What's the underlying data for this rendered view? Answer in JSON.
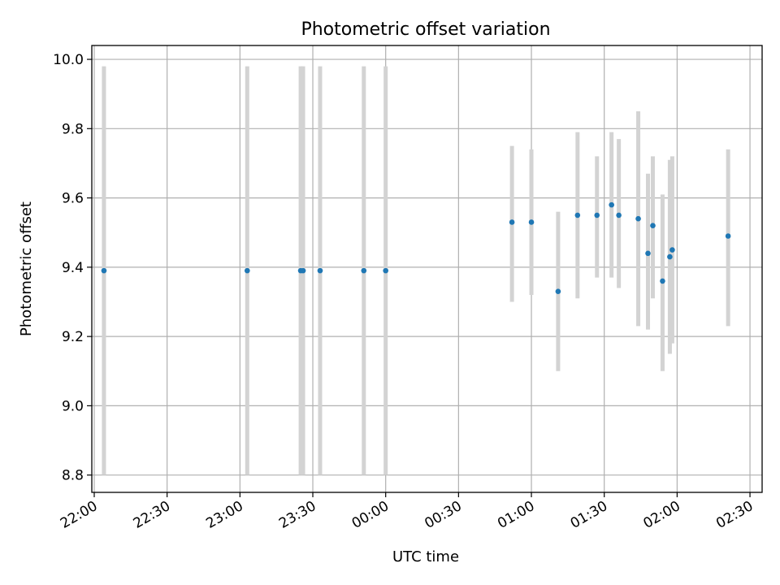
{
  "chart_data": {
    "type": "scatter",
    "title": "Photometric offset variation",
    "xlabel": "UTC time",
    "ylabel": "Photometric offset",
    "x_axis_kind": "time",
    "xlim": [
      "2000-01-01T21:59:00",
      "2000-01-02T02:35:00"
    ],
    "ylim": [
      8.75,
      10.04
    ],
    "grid": true,
    "x_ticks": [
      {
        "t": "2000-01-01T22:00:00",
        "label": "22:00"
      },
      {
        "t": "2000-01-01T22:30:00",
        "label": "22:30"
      },
      {
        "t": "2000-01-01T23:00:00",
        "label": "23:00"
      },
      {
        "t": "2000-01-01T23:30:00",
        "label": "23:30"
      },
      {
        "t": "2000-01-02T00:00:00",
        "label": "00:00"
      },
      {
        "t": "2000-01-02T00:30:00",
        "label": "00:30"
      },
      {
        "t": "2000-01-02T01:00:00",
        "label": "01:00"
      },
      {
        "t": "2000-01-02T01:30:00",
        "label": "01:30"
      },
      {
        "t": "2000-01-02T02:00:00",
        "label": "02:00"
      },
      {
        "t": "2000-01-02T02:30:00",
        "label": "02:30"
      }
    ],
    "y_ticks": [
      {
        "v": 8.8,
        "label": "8.8"
      },
      {
        "v": 9.0,
        "label": "9.0"
      },
      {
        "v": 9.2,
        "label": "9.2"
      },
      {
        "v": 9.4,
        "label": "9.4"
      },
      {
        "v": 9.6,
        "label": "9.6"
      },
      {
        "v": 9.8,
        "label": "9.8"
      },
      {
        "v": 10.0,
        "label": "10.0"
      }
    ],
    "marker_color": "#1f77b4",
    "errorbar_color": "#d3d3d3",
    "points": [
      {
        "t": "2000-01-01T22:04:00",
        "y": 9.39,
        "lo": 8.8,
        "hi": 9.98
      },
      {
        "t": "2000-01-01T23:03:00",
        "y": 9.39,
        "lo": 8.8,
        "hi": 9.98
      },
      {
        "t": "2000-01-01T23:25:00",
        "y": 9.39,
        "lo": 8.8,
        "hi": 9.98
      },
      {
        "t": "2000-01-01T23:26:00",
        "y": 9.39,
        "lo": 8.8,
        "hi": 9.98
      },
      {
        "t": "2000-01-01T23:33:00",
        "y": 9.39,
        "lo": 8.8,
        "hi": 9.98
      },
      {
        "t": "2000-01-01T23:51:00",
        "y": 9.39,
        "lo": 8.8,
        "hi": 9.98
      },
      {
        "t": "2000-01-02T00:00:00",
        "y": 9.39,
        "lo": 8.8,
        "hi": 9.98
      },
      {
        "t": "2000-01-02T00:52:00",
        "y": 9.53,
        "lo": 9.3,
        "hi": 9.75
      },
      {
        "t": "2000-01-02T01:00:00",
        "y": 9.53,
        "lo": 9.32,
        "hi": 9.74
      },
      {
        "t": "2000-01-02T01:11:00",
        "y": 9.33,
        "lo": 9.1,
        "hi": 9.56
      },
      {
        "t": "2000-01-02T01:19:00",
        "y": 9.55,
        "lo": 9.31,
        "hi": 9.79
      },
      {
        "t": "2000-01-02T01:27:00",
        "y": 9.55,
        "lo": 9.37,
        "hi": 9.72
      },
      {
        "t": "2000-01-02T01:33:00",
        "y": 9.58,
        "lo": 9.37,
        "hi": 9.79
      },
      {
        "t": "2000-01-02T01:36:00",
        "y": 9.55,
        "lo": 9.34,
        "hi": 9.77
      },
      {
        "t": "2000-01-02T01:44:00",
        "y": 9.54,
        "lo": 9.23,
        "hi": 9.85
      },
      {
        "t": "2000-01-02T01:48:00",
        "y": 9.44,
        "lo": 9.22,
        "hi": 9.67
      },
      {
        "t": "2000-01-02T01:50:00",
        "y": 9.52,
        "lo": 9.31,
        "hi": 9.72
      },
      {
        "t": "2000-01-02T01:54:00",
        "y": 9.36,
        "lo": 9.1,
        "hi": 9.61
      },
      {
        "t": "2000-01-02T01:57:00",
        "y": 9.43,
        "lo": 9.15,
        "hi": 9.71
      },
      {
        "t": "2000-01-02T01:58:00",
        "y": 9.45,
        "lo": 9.18,
        "hi": 9.72
      },
      {
        "t": "2000-01-02T02:21:00",
        "y": 9.49,
        "lo": 9.23,
        "hi": 9.74
      }
    ]
  }
}
